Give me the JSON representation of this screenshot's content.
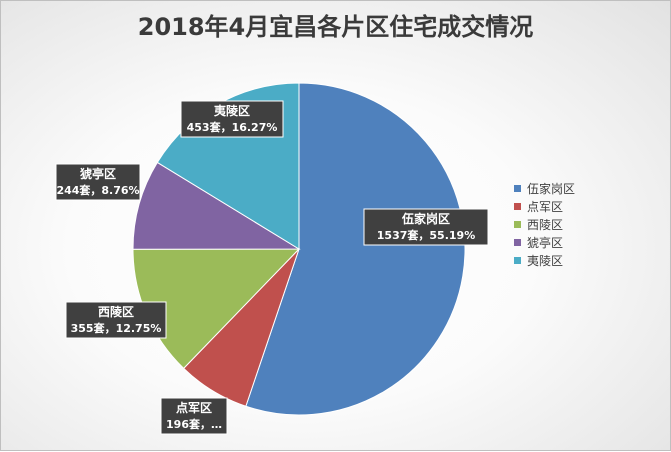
{
  "chart_data": {
    "type": "pie",
    "title": "2018年4月宜昌各片区住宅成交情况",
    "unit": "套",
    "slices": [
      {
        "name": "伍家岗区",
        "value": 1537,
        "percent": "55.19%",
        "color": "#4f81bd",
        "label_value": "1537套，55.19%"
      },
      {
        "name": "点军区",
        "value": 196,
        "percent": "7.04%",
        "color": "#c0504d",
        "label_value": "196套，…"
      },
      {
        "name": "西陵区",
        "value": 355,
        "percent": "12.75%",
        "color": "#9bbb59",
        "label_value": "355套，12.75%"
      },
      {
        "name": "猇亭区",
        "value": 244,
        "percent": "8.76%",
        "color": "#8064a2",
        "label_value": "244套，8.76%"
      },
      {
        "name": "夷陵区",
        "value": 453,
        "percent": "16.27%",
        "color": "#4bacc6",
        "label_value": "453套，16.27%"
      }
    ],
    "legend": {
      "position": "right",
      "entries": [
        "伍家岗区",
        "点军区",
        "西陵区",
        "猇亭区",
        "夷陵区"
      ]
    }
  }
}
